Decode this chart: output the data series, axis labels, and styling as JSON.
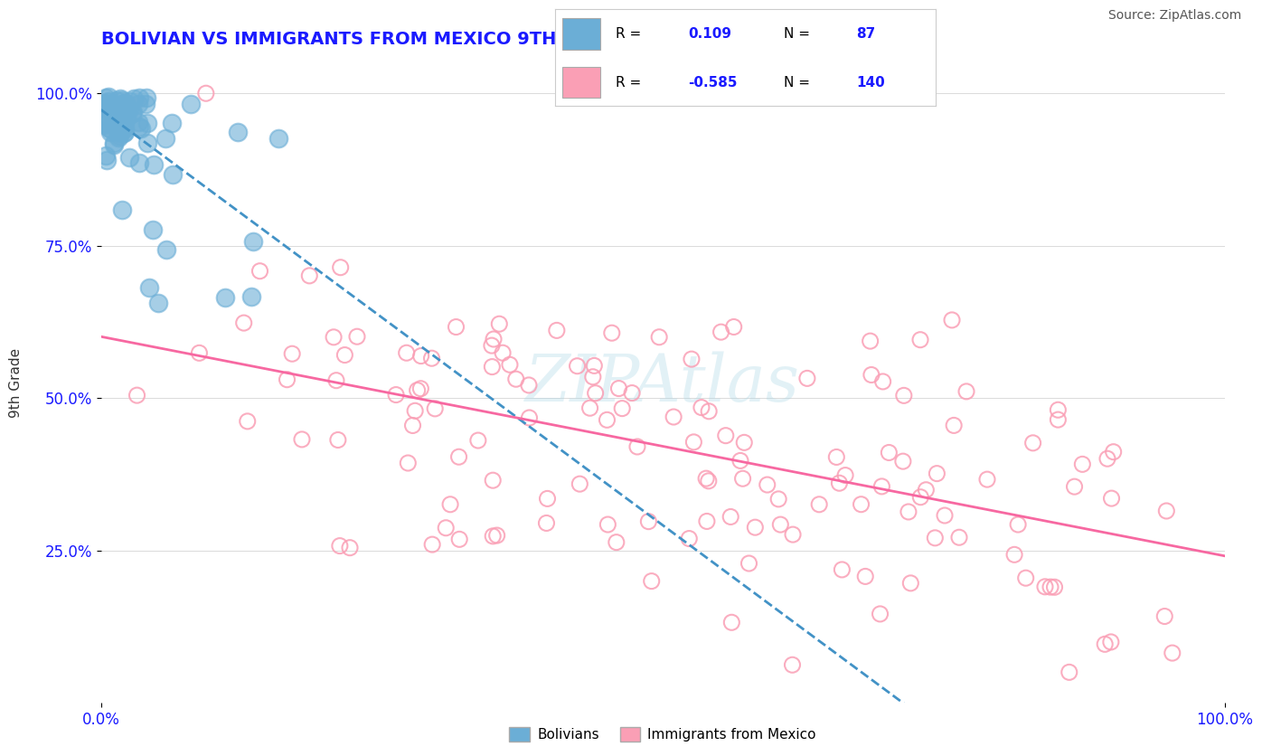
{
  "title": "BOLIVIAN VS IMMIGRANTS FROM MEXICO 9TH GRADE CORRELATION CHART",
  "source": "Source: ZipAtlas.com",
  "xlabel": "",
  "ylabel": "9th Grade",
  "r_bolivian": 0.109,
  "n_bolivian": 87,
  "r_mexico": -0.585,
  "n_mexico": 140,
  "xlim": [
    0.0,
    1.0
  ],
  "ylim": [
    0.0,
    1.05
  ],
  "x_tick_labels": [
    "0.0%",
    "100.0%"
  ],
  "y_tick_labels": [
    "25.0%",
    "50.0%",
    "75.0%",
    "100.0%"
  ],
  "watermark": "ZIPAtlas",
  "legend_labels": [
    "Bolivians",
    "Immigrants from Mexico"
  ],
  "bolivian_color": "#6baed6",
  "mexico_color": "#fa9fb5",
  "bolivian_line_color": "#4292c6",
  "mexico_line_color": "#f768a1",
  "background_color": "#ffffff",
  "title_color": "#1a1aff",
  "title_fontsize": 14
}
